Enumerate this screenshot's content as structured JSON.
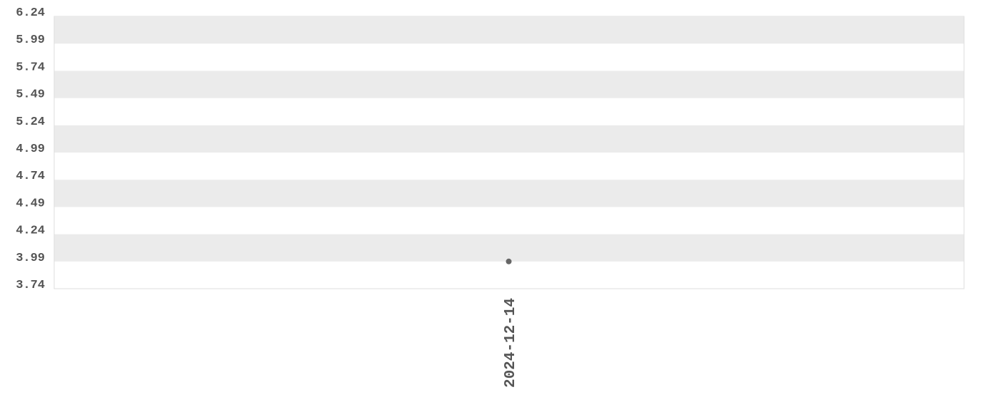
{
  "chart_data": {
    "type": "scatter",
    "title": "",
    "xlabel": "",
    "ylabel": "",
    "x_categories": [
      "2024-12-14"
    ],
    "y_ticks": [
      "6.24",
      "5.99",
      "5.74",
      "5.49",
      "5.24",
      "4.99",
      "4.74",
      "4.49",
      "4.24",
      "3.99",
      "3.74"
    ],
    "ylim": [
      3.74,
      6.24
    ],
    "grid": "alternating horizontal bands",
    "series": [
      {
        "points": [
          {
            "x": "2024-12-14",
            "y": 3.99
          }
        ]
      }
    ],
    "colors": {
      "band": "#ebebeb",
      "point": "#666666",
      "text": "#555555",
      "border": "#dddddd"
    }
  }
}
